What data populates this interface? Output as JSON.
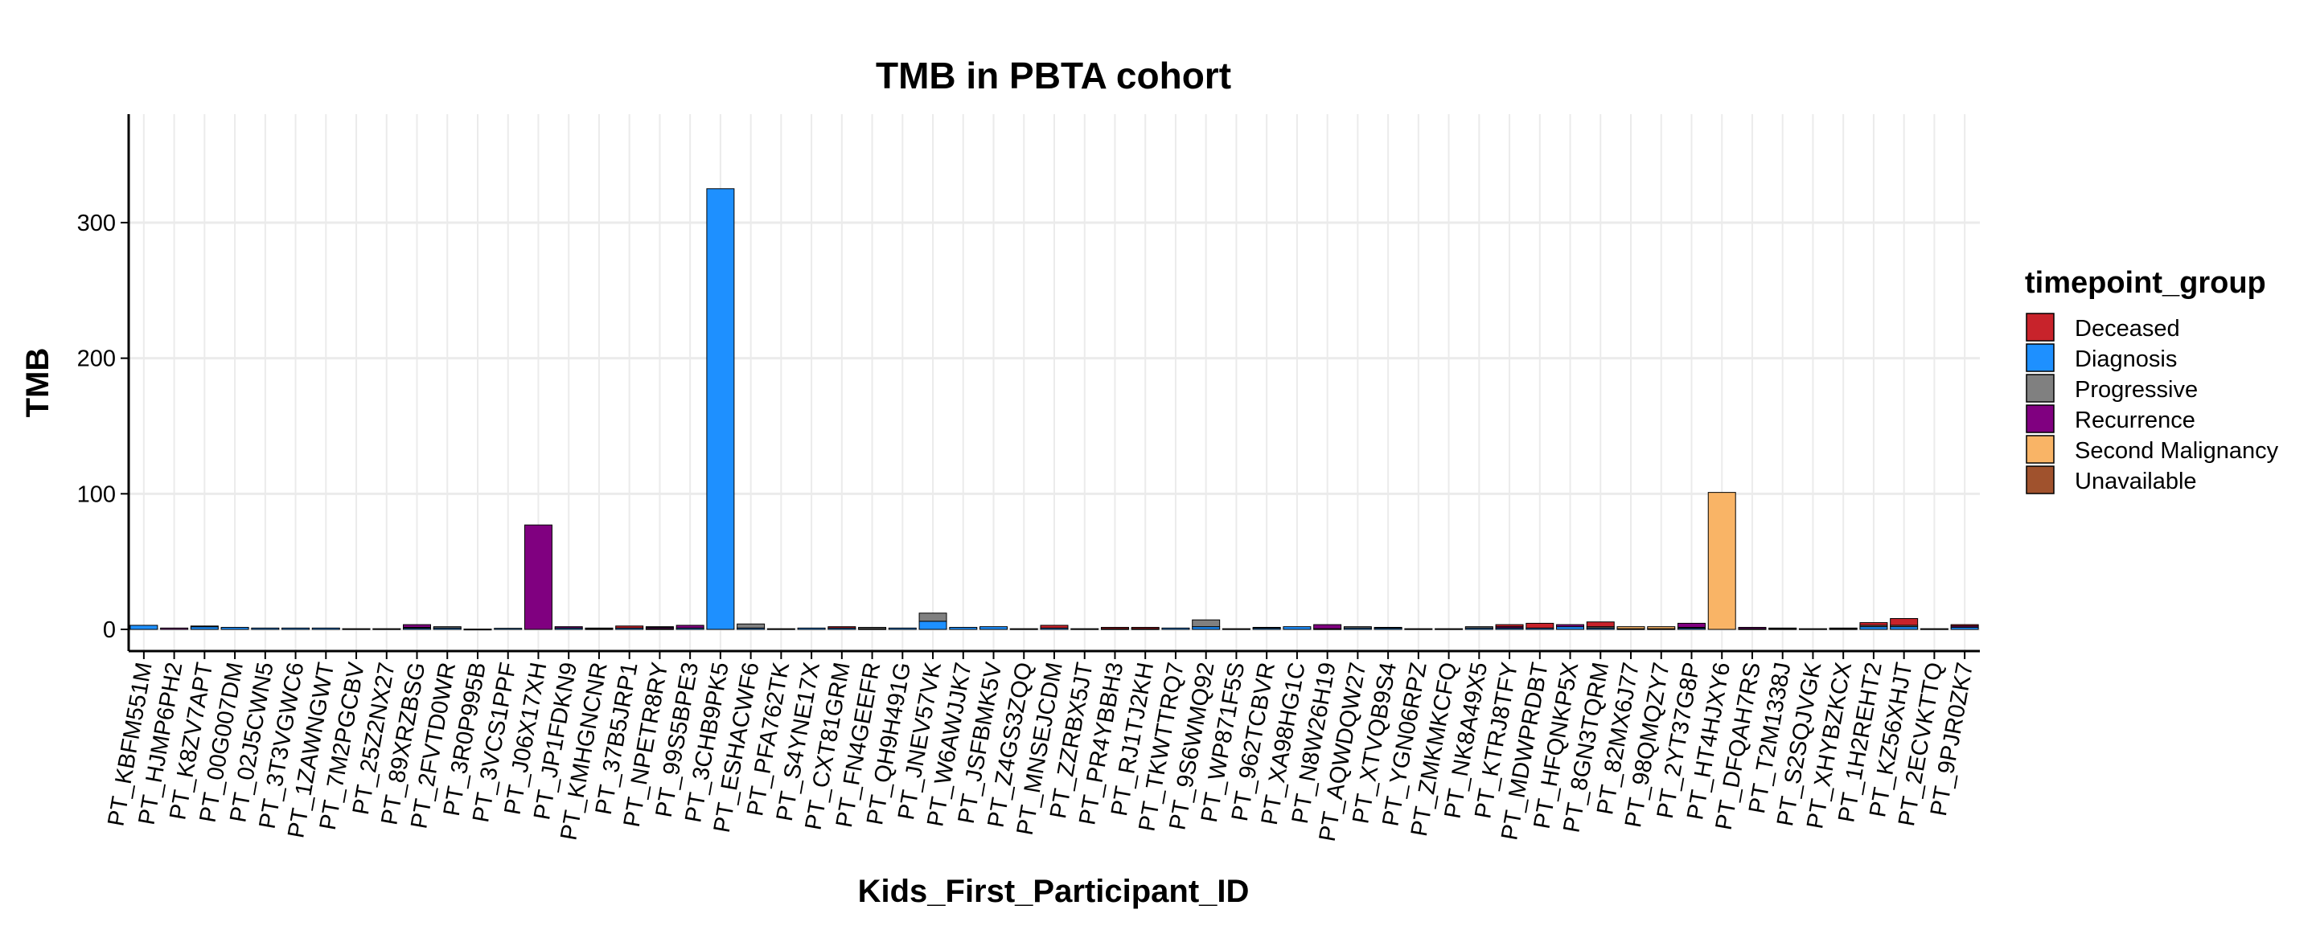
{
  "chart_data": {
    "type": "bar",
    "title": "TMB in PBTA cohort",
    "xlabel": "Kids_First_Participant_ID",
    "ylabel": "TMB",
    "ylim": [
      -16,
      380
    ],
    "yticks": [
      0,
      100,
      200,
      300
    ],
    "grid": true,
    "legend": {
      "title": "timepoint_group",
      "placement": "right",
      "items": [
        {
          "name": "Deceased",
          "color": "#C8232B"
        },
        {
          "name": "Diagnosis",
          "color": "#1E90FF"
        },
        {
          "name": "Progressive",
          "color": "#808080"
        },
        {
          "name": "Recurrence",
          "color": "#800080"
        },
        {
          "name": "Second Malignancy",
          "color": "#F9B466"
        },
        {
          "name": "Unavailable",
          "color": "#A0522D"
        }
      ]
    },
    "categories": [
      "PT_KBFM551M",
      "PT_HJMP6PH2",
      "PT_K8ZV7APT",
      "PT_00G007DM",
      "PT_02J5CWN5",
      "PT_3T3VGWC6",
      "PT_1ZAWNGWT",
      "PT_7M2PGCBV",
      "PT_25Z2NX27",
      "PT_89XRZBSG",
      "PT_2FVTD0WR",
      "PT_3R0P995B",
      "PT_3VCS1PPF",
      "PT_J06X17XH",
      "PT_JP1FDKN9",
      "PT_KMHGNCNR",
      "PT_37B5JRP1",
      "PT_NPETR8RY",
      "PT_99S5BPE3",
      "PT_3CHB9PK5",
      "PT_ESHACWF6",
      "PT_PFA762TK",
      "PT_S4YNE17X",
      "PT_CXT81GRM",
      "PT_FN4GEEFR",
      "PT_QH9H491G",
      "PT_JNEV57VK",
      "PT_W6AWJJK7",
      "PT_JSFBMK5V",
      "PT_Z4GS3ZQQ",
      "PT_MNSEJCDM",
      "PT_ZZRBX5JT",
      "PT_PR4YBBH3",
      "PT_RJ1TJ2KH",
      "PT_TKWTTRQ7",
      "PT_9S6WMQ92",
      "PT_WP871F5S",
      "PT_962TCBVR",
      "PT_XA98HG1C",
      "PT_N8W26H19",
      "PT_AQWDQW27",
      "PT_XTVQB9S4",
      "PT_YGN06RPZ",
      "PT_ZMKMKCFQ",
      "PT_NK8A49X5",
      "PT_KTRJ8TFY",
      "PT_MDWPRDBT",
      "PT_HFQNKP5X",
      "PT_8GN3TQRM",
      "PT_82MX6J77",
      "PT_98QMQZY7",
      "PT_2YT37G8P",
      "PT_HT4HJXY6",
      "PT_DFQAH7RS",
      "PT_T2M1338J",
      "PT_S2SQJVGK",
      "PT_XHYBZKCX",
      "PT_1H2REHT2",
      "PT_KZ56XHJT",
      "PT_2ECVKTTQ",
      "PT_9PJR0ZK7"
    ],
    "series": [
      {
        "name": "Diagnosis",
        "values": [
          3,
          0,
          2,
          1.5,
          1,
          1,
          1,
          0.5,
          0.5,
          1,
          1,
          0.2,
          0.8,
          0,
          1,
          0.5,
          1,
          0.5,
          1,
          325,
          1,
          0.5,
          1,
          1,
          0.5,
          1,
          6,
          1.5,
          2,
          0.5,
          1,
          0.5,
          0.5,
          0.5,
          1,
          2,
          0.5,
          1,
          2,
          0.5,
          1,
          1,
          0.5,
          0.5,
          1,
          1,
          1,
          2,
          1,
          0.5,
          0.5,
          1,
          0,
          0.5,
          0.5,
          0.5,
          0.5,
          2,
          2,
          0.5,
          1.5
        ]
      },
      {
        "name": "Progressive",
        "values": [
          0,
          0,
          0.5,
          0,
          0,
          0,
          0,
          0,
          0,
          0.5,
          1,
          0,
          0,
          0,
          0,
          0,
          0,
          0,
          0,
          0,
          3,
          0,
          0,
          0,
          1,
          0,
          6,
          0,
          0,
          0,
          0,
          0,
          0,
          0,
          0,
          5,
          0,
          0.5,
          0,
          0,
          1,
          0.5,
          0,
          0,
          1,
          0,
          0,
          0,
          1,
          0,
          0,
          0.5,
          0,
          0,
          0.5,
          0,
          0.5,
          1,
          1,
          0,
          0
        ]
      },
      {
        "name": "Recurrence",
        "values": [
          0,
          1,
          0,
          0,
          0,
          0,
          0,
          0,
          0,
          2,
          0,
          0,
          0,
          77,
          1,
          0.5,
          0,
          1,
          2,
          0,
          0,
          0,
          0,
          0,
          0,
          0,
          0,
          0,
          0,
          0,
          0,
          0,
          0,
          0,
          0,
          0,
          0,
          0,
          0,
          3,
          0,
          0,
          0,
          0,
          0,
          1,
          0,
          1.5,
          0,
          0,
          0,
          3,
          0,
          1,
          0,
          0,
          0,
          0,
          0,
          0,
          1
        ]
      },
      {
        "name": "Deceased",
        "values": [
          0,
          0,
          0,
          0,
          0,
          0,
          0,
          0,
          0,
          0,
          0,
          0,
          0,
          0,
          0,
          0,
          1.5,
          0.5,
          0,
          0,
          0,
          0,
          0,
          1,
          0,
          0,
          0,
          0,
          0,
          0,
          2,
          0,
          1,
          1,
          0,
          0,
          0,
          0,
          0,
          0,
          0,
          0,
          0,
          0,
          0,
          1.5,
          3.5,
          0,
          3.5,
          0,
          0,
          0,
          0,
          0,
          0,
          0,
          0,
          2,
          5,
          0,
          1
        ]
      },
      {
        "name": "Second Malignancy",
        "values": [
          0,
          0,
          0,
          0,
          0,
          0,
          0,
          0,
          0,
          0,
          0,
          0,
          0,
          0,
          0,
          0,
          0,
          0,
          0,
          0,
          0,
          0,
          0,
          0,
          0,
          0,
          0,
          0,
          0,
          0,
          0,
          0,
          0,
          0,
          0,
          0,
          0,
          0,
          0,
          0,
          0,
          0,
          0,
          0,
          0,
          0,
          0,
          0,
          0,
          1.5,
          1.5,
          0,
          101,
          0,
          0,
          0,
          0,
          0,
          0,
          0,
          0
        ]
      },
      {
        "name": "Unavailable",
        "values": [
          0,
          0,
          0,
          0,
          0,
          0,
          0,
          0,
          0,
          0,
          0,
          0,
          0,
          0,
          0,
          0,
          0,
          0,
          0,
          0,
          0,
          0,
          0,
          0,
          0,
          0,
          0,
          0,
          0,
          0,
          0,
          0,
          0,
          0,
          0,
          0,
          0,
          0,
          0,
          0,
          0,
          0,
          0,
          0,
          0,
          0,
          0,
          0,
          0,
          0,
          0,
          0,
          0,
          0,
          0,
          0,
          0,
          0,
          0,
          0,
          0
        ]
      }
    ]
  }
}
